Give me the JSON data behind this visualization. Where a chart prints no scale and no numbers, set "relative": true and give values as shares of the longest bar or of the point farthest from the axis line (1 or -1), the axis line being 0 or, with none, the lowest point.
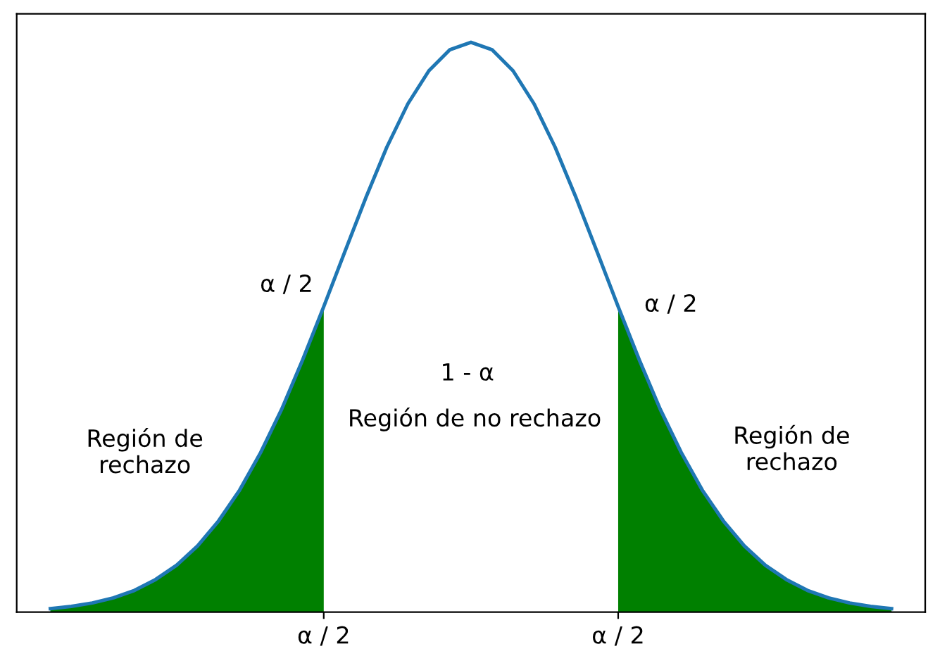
{
  "chart_data": {
    "type": "line",
    "relative": true,
    "categories": [
      null,
      null,
      null,
      null,
      null,
      null,
      null,
      null,
      null,
      null,
      null,
      null,
      null,
      "α / 2",
      null,
      null,
      null,
      null,
      null,
      null,
      null,
      null,
      null,
      null,
      null,
      null,
      null,
      "α / 2",
      null,
      null,
      null,
      null,
      null,
      null,
      null,
      null,
      null,
      null,
      null,
      null,
      null
    ],
    "series": [
      {
        "type": "area",
        "color": "#008000",
        "values": [
          0.006,
          0.01,
          0.016,
          0.025,
          0.038,
          0.057,
          0.082,
          0.116,
          0.16,
          0.214,
          0.28,
          0.356,
          0.443,
          0.536,
          null,
          null,
          null,
          null,
          null,
          null,
          null,
          null,
          null,
          null,
          null,
          null,
          null,
          null,
          null,
          null,
          null,
          null,
          null,
          null,
          null,
          null,
          null,
          null,
          null,
          null,
          null
        ]
      },
      {
        "type": "area",
        "color": "#008000",
        "values": [
          null,
          null,
          null,
          null,
          null,
          null,
          null,
          null,
          null,
          null,
          null,
          null,
          null,
          null,
          null,
          null,
          null,
          null,
          null,
          null,
          null,
          null,
          null,
          null,
          null,
          null,
          null,
          0.536,
          0.443,
          0.356,
          0.28,
          0.214,
          0.16,
          0.116,
          0.082,
          0.057,
          0.038,
          0.025,
          0.016,
          0.01,
          0.006
        ]
      },
      {
        "color": "#1f77b4",
        "values": [
          0.006,
          0.01,
          0.016,
          0.025,
          0.038,
          0.057,
          0.082,
          0.116,
          0.16,
          0.214,
          0.28,
          0.356,
          0.443,
          0.536,
          0.632,
          0.727,
          0.816,
          0.892,
          0.95,
          0.987,
          1,
          0.987,
          0.95,
          0.892,
          0.816,
          0.727,
          0.632,
          0.536,
          0.443,
          0.356,
          0.28,
          0.214,
          0.16,
          0.116,
          0.082,
          0.057,
          0.038,
          0.025,
          0.016,
          0.01,
          0.006
        ]
      }
    ],
    "annotations": [
      "α / 2",
      "α / 2",
      "1 - α",
      "Región de no rechazo",
      "Región de\nrechazo",
      "Región de\nrechazo"
    ]
  }
}
